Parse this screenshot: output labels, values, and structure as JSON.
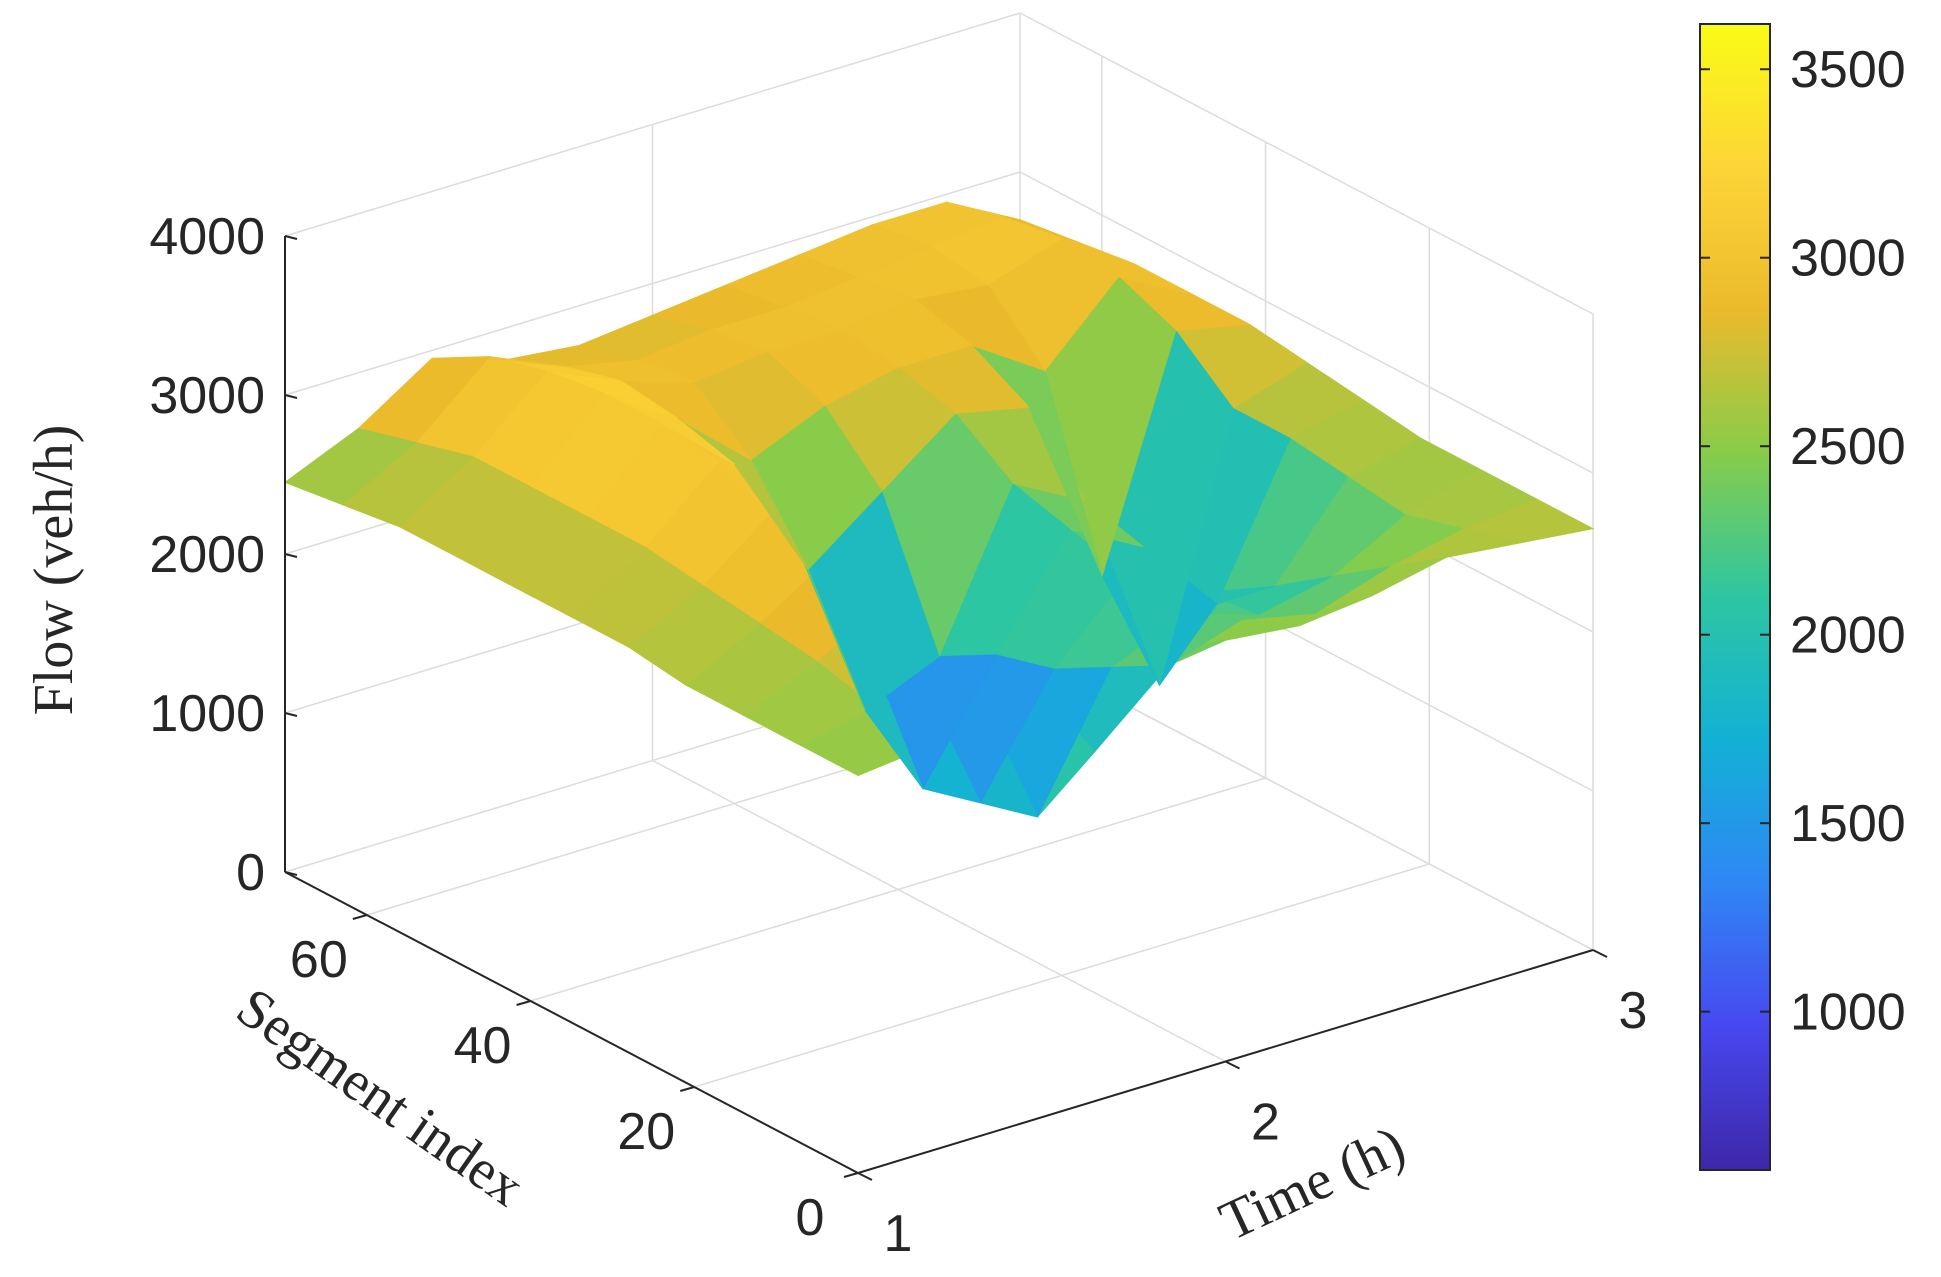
{
  "chart_data": {
    "type": "surface",
    "xlabel": "Time (h)",
    "ylabel": "Segment index",
    "zlabel": "Flow (veh/h)",
    "xlim": [
      1,
      3
    ],
    "ylim": [
      0,
      70
    ],
    "zlim": [
      0,
      4000
    ],
    "x_ticks": [
      "1",
      "2",
      "3"
    ],
    "y_ticks": [
      "0",
      "20",
      "40",
      "60"
    ],
    "z_ticks": [
      "0",
      "1000",
      "2000",
      "3000",
      "4000"
    ],
    "colorbar": {
      "range": [
        580,
        3620
      ],
      "ticks": [
        "1000",
        "1500",
        "2000",
        "2500",
        "3000",
        "3500"
      ],
      "colormap": [
        "#3e26a8",
        "#4748f0",
        "#2f87f5",
        "#12b1d5",
        "#2dc6a2",
        "#87cc4a",
        "#ebba2c",
        "#fdd537",
        "#f9fb15"
      ]
    },
    "grid": true,
    "surface": {
      "time_h": [
        1.0,
        1.2,
        1.4,
        1.6,
        1.8,
        2.0,
        2.2,
        2.4,
        2.6,
        2.8,
        3.0
      ],
      "segment_index": [
        0,
        7,
        14,
        21,
        28,
        35,
        42,
        49,
        56,
        63,
        70
      ],
      "flow_veh_h": [
        [
          2500,
          2550,
          2600,
          2650,
          2700,
          2650,
          2600,
          2650,
          2750,
          2700,
          2650
        ],
        [
          2500,
          2600,
          2750,
          2550,
          1900,
          2300,
          2450,
          2350,
          2500,
          2600,
          2650
        ],
        [
          2500,
          2700,
          2950,
          2400,
          1300,
          2100,
          2300,
          2150,
          2250,
          2500,
          2650
        ],
        [
          2500,
          2750,
          3050,
          2300,
          1200,
          1900,
          2350,
          2100,
          2000,
          2550,
          2650
        ],
        [
          2550,
          2800,
          3150,
          2400,
          1100,
          1800,
          2450,
          2200,
          1700,
          2600,
          2700
        ],
        [
          2550,
          2850,
          3250,
          2650,
          1400,
          1600,
          2550,
          2300,
          1000,
          2600,
          2750
        ],
        [
          2550,
          2850,
          3300,
          2900,
          2100,
          2450,
          2800,
          2700,
          1500,
          2900,
          2800
        ],
        [
          2550,
          2850,
          3300,
          3000,
          2600,
          2800,
          2900,
          2900,
          2600,
          3050,
          2800
        ],
        [
          2550,
          2850,
          3250,
          3050,
          2900,
          2950,
          2950,
          3000,
          2950,
          3100,
          2800
        ],
        [
          2500,
          2750,
          3150,
          2950,
          2850,
          2900,
          2900,
          2950,
          3000,
          3050,
          2750
        ],
        [
          2450,
          2650,
          2950,
          2800,
          2750,
          2800,
          2850,
          2900,
          2950,
          2950,
          2700
        ]
      ]
    }
  }
}
